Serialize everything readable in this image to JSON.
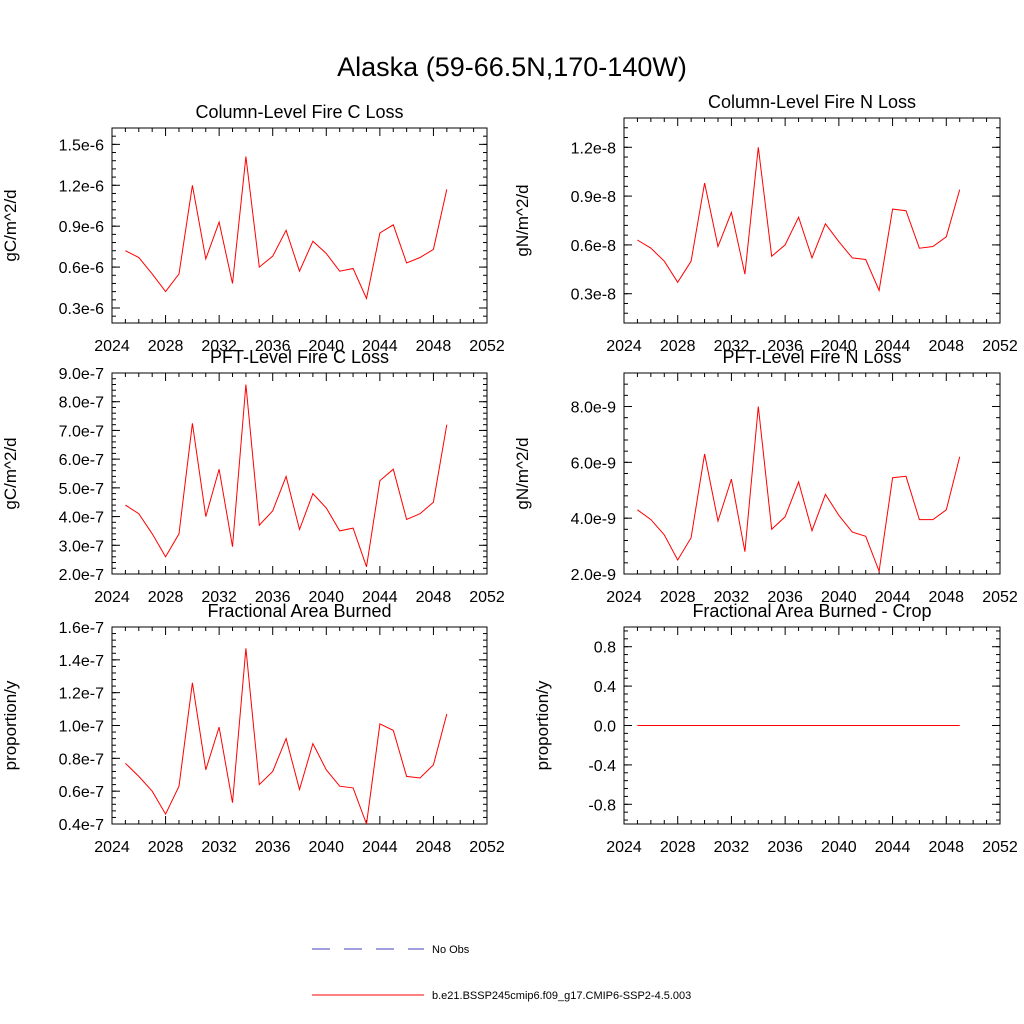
{
  "title": "Alaska (59-66.5N,170-140W)",
  "colors": {
    "series": "#ff0000",
    "obs": "#4040c0",
    "axis": "#000000"
  },
  "legend": {
    "obs_label": "No Obs",
    "model_label": "b.e21.BSSP245cmip6.f09_g17.CMIP6-SSP2-4.5.003"
  },
  "chart_data": [
    {
      "type": "line",
      "title": "Column-Level Fire C Loss",
      "ylabel": "gC/m^2/d",
      "xlim": [
        2024,
        2052
      ],
      "ylim": [
        1.9e-07,
        1.62e-06
      ],
      "xticks": [
        2024,
        2028,
        2032,
        2036,
        2040,
        2044,
        2048,
        2052
      ],
      "yticks": [
        3e-07,
        6e-07,
        9e-07,
        1.2e-06,
        1.5e-06
      ],
      "yticklabels": [
        "0.3e-6",
        "0.6e-6",
        "0.9e-6",
        "1.2e-6",
        "1.5e-6"
      ],
      "x": [
        2025,
        2026,
        2027,
        2028,
        2029,
        2030,
        2031,
        2032,
        2033,
        2034,
        2035,
        2036,
        2037,
        2038,
        2039,
        2040,
        2041,
        2042,
        2043,
        2044,
        2045,
        2046,
        2047,
        2048,
        2049
      ],
      "values": [
        7.2e-07,
        6.7e-07,
        5.5e-07,
        4.2e-07,
        5.5e-07,
        1.2e-06,
        6.6e-07,
        9.3e-07,
        4.8e-07,
        1.41e-06,
        6e-07,
        6.8e-07,
        8.7e-07,
        5.7e-07,
        7.9e-07,
        7e-07,
        5.7e-07,
        5.9e-07,
        3.7e-07,
        8.5e-07,
        9.1e-07,
        6.3e-07,
        6.7e-07,
        7.3e-07,
        1.17e-06
      ]
    },
    {
      "type": "line",
      "title": "Column-Level Fire N Loss",
      "ylabel": "gN/m^2/d",
      "xlim": [
        2024,
        2052
      ],
      "ylim": [
        1.2e-09,
        1.38e-08
      ],
      "xticks": [
        2024,
        2028,
        2032,
        2036,
        2040,
        2044,
        2048,
        2052
      ],
      "yticks": [
        3e-09,
        6e-09,
        9e-09,
        1.2e-08
      ],
      "yticklabels": [
        "0.3e-8",
        "0.6e-8",
        "0.9e-8",
        "1.2e-8"
      ],
      "x": [
        2025,
        2026,
        2027,
        2028,
        2029,
        2030,
        2031,
        2032,
        2033,
        2034,
        2035,
        2036,
        2037,
        2038,
        2039,
        2040,
        2041,
        2042,
        2043,
        2044,
        2045,
        2046,
        2047,
        2048,
        2049
      ],
      "values": [
        6.3e-09,
        5.8e-09,
        5e-09,
        3.7e-09,
        5e-09,
        9.8e-09,
        5.9e-09,
        8e-09,
        4.2e-09,
        1.2e-08,
        5.3e-09,
        6e-09,
        7.7e-09,
        5.2e-09,
        7.3e-09,
        6.2e-09,
        5.2e-09,
        5.1e-09,
        3.2e-09,
        8.2e-09,
        8.1e-09,
        5.8e-09,
        5.9e-09,
        6.5e-09,
        9.4e-09
      ]
    },
    {
      "type": "line",
      "title": "PFT-Level Fire C Loss",
      "ylabel": "gC/m^2/d",
      "xlim": [
        2024,
        2052
      ],
      "ylim": [
        2e-07,
        9e-07
      ],
      "xticks": [
        2024,
        2028,
        2032,
        2036,
        2040,
        2044,
        2048,
        2052
      ],
      "yticks": [
        2e-07,
        3e-07,
        4e-07,
        5e-07,
        6e-07,
        7e-07,
        8e-07,
        9e-07
      ],
      "yticklabels": [
        "2.0e-7",
        "3.0e-7",
        "4.0e-7",
        "5.0e-7",
        "6.0e-7",
        "7.0e-7",
        "8.0e-7",
        "9.0e-7"
      ],
      "x": [
        2025,
        2026,
        2027,
        2028,
        2029,
        2030,
        2031,
        2032,
        2033,
        2034,
        2035,
        2036,
        2037,
        2038,
        2039,
        2040,
        2041,
        2042,
        2043,
        2044,
        2045,
        2046,
        2047,
        2048,
        2049
      ],
      "values": [
        4.4e-07,
        4.1e-07,
        3.4e-07,
        2.6e-07,
        3.4e-07,
        7.25e-07,
        4e-07,
        5.65e-07,
        2.95e-07,
        8.6e-07,
        3.7e-07,
        4.2e-07,
        5.4e-07,
        3.55e-07,
        4.8e-07,
        4.3e-07,
        3.5e-07,
        3.6e-07,
        2.25e-07,
        5.25e-07,
        5.65e-07,
        3.9e-07,
        4.1e-07,
        4.5e-07,
        7.2e-07
      ]
    },
    {
      "type": "line",
      "title": "PFT-Level Fire N Loss",
      "ylabel": "gN/m^2/d",
      "xlim": [
        2024,
        2052
      ],
      "ylim": [
        2e-09,
        9.2e-09
      ],
      "xticks": [
        2024,
        2028,
        2032,
        2036,
        2040,
        2044,
        2048,
        2052
      ],
      "yticks": [
        2e-09,
        4e-09,
        6e-09,
        8e-09
      ],
      "yticklabels": [
        "2.0e-9",
        "4.0e-9",
        "6.0e-9",
        "8.0e-9"
      ],
      "x": [
        2025,
        2026,
        2027,
        2028,
        2029,
        2030,
        2031,
        2032,
        2033,
        2034,
        2035,
        2036,
        2037,
        2038,
        2039,
        2040,
        2041,
        2042,
        2043,
        2044,
        2045,
        2046,
        2047,
        2048,
        2049
      ],
      "values": [
        4.3e-09,
        3.95e-09,
        3.4e-09,
        2.5e-09,
        3.3e-09,
        6.3e-09,
        3.9e-09,
        5.4e-09,
        2.8e-09,
        8e-09,
        3.6e-09,
        4.05e-09,
        5.3e-09,
        3.55e-09,
        4.85e-09,
        4.1e-09,
        3.5e-09,
        3.35e-09,
        2.1e-09,
        5.45e-09,
        5.5e-09,
        3.95e-09,
        3.95e-09,
        4.3e-09,
        6.2e-09
      ]
    },
    {
      "type": "line",
      "title": "Fractional Area Burned",
      "ylabel": "proportion/y",
      "xlim": [
        2024,
        2052
      ],
      "ylim": [
        4e-08,
        1.6e-07
      ],
      "xticks": [
        2024,
        2028,
        2032,
        2036,
        2040,
        2044,
        2048,
        2052
      ],
      "yticks": [
        4e-08,
        6e-08,
        8e-08,
        1e-07,
        1.2e-07,
        1.4e-07,
        1.6e-07
      ],
      "yticklabels": [
        "0.4e-7",
        "0.6e-7",
        "0.8e-7",
        "1.0e-7",
        "1.2e-7",
        "1.4e-7",
        "1.6e-7"
      ],
      "x": [
        2025,
        2026,
        2027,
        2028,
        2029,
        2030,
        2031,
        2032,
        2033,
        2034,
        2035,
        2036,
        2037,
        2038,
        2039,
        2040,
        2041,
        2042,
        2043,
        2044,
        2045,
        2046,
        2047,
        2048,
        2049
      ],
      "values": [
        7.7e-08,
        6.9e-08,
        6e-08,
        4.6e-08,
        6.3e-08,
        1.26e-07,
        7.3e-08,
        9.9e-08,
        5.3e-08,
        1.47e-07,
        6.4e-08,
        7.2e-08,
        9.2e-08,
        6.1e-08,
        8.9e-08,
        7.3e-08,
        6.3e-08,
        6.2e-08,
        4e-08,
        1.01e-07,
        9.7e-08,
        6.9e-08,
        6.8e-08,
        7.6e-08,
        1.07e-07
      ]
    },
    {
      "type": "line",
      "title": "Fractional Area Burned - Crop",
      "ylabel": "proportion/y",
      "xlim": [
        2024,
        2052
      ],
      "ylim": [
        -1,
        1
      ],
      "xticks": [
        2024,
        2028,
        2032,
        2036,
        2040,
        2044,
        2048,
        2052
      ],
      "yticks": [
        -0.8,
        -0.4,
        0,
        0.4,
        0.8
      ],
      "yticklabels": [
        "-0.8",
        "-0.4",
        "0.0",
        "0.4",
        "0.8"
      ],
      "x": [
        2025,
        2026,
        2027,
        2028,
        2029,
        2030,
        2031,
        2032,
        2033,
        2034,
        2035,
        2036,
        2037,
        2038,
        2039,
        2040,
        2041,
        2042,
        2043,
        2044,
        2045,
        2046,
        2047,
        2048,
        2049
      ],
      "values": [
        0,
        0,
        0,
        0,
        0,
        0,
        0,
        0,
        0,
        0,
        0,
        0,
        0,
        0,
        0,
        0,
        0,
        0,
        0,
        0,
        0,
        0,
        0,
        0,
        0
      ]
    }
  ]
}
